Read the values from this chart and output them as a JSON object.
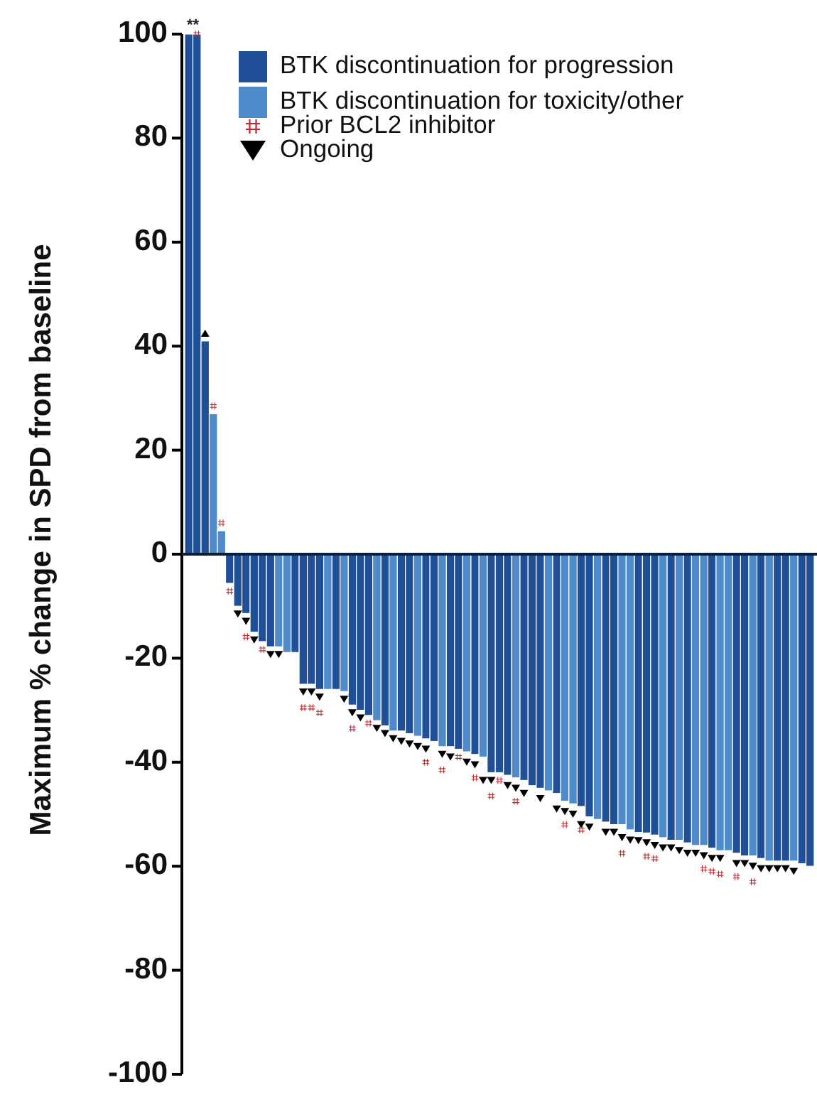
{
  "chart_data": {
    "type": "bar",
    "ylabel": "Maximum % change in SPD from baseline",
    "categories": [
      null,
      null,
      null,
      null,
      null,
      null,
      null,
      null,
      null,
      null,
      null,
      null,
      null,
      null,
      null,
      null,
      null,
      null,
      null,
      null,
      null,
      null,
      null,
      null,
      null,
      null,
      null,
      null,
      null,
      null,
      null,
      null,
      null,
      null,
      null,
      null,
      null,
      null,
      null,
      null,
      null,
      null,
      null,
      null,
      null,
      null,
      null,
      null,
      null,
      null,
      null,
      null,
      null,
      null,
      null,
      null,
      null,
      null,
      null,
      null,
      null,
      null,
      null,
      null,
      null,
      null,
      null,
      null,
      null,
      null,
      null,
      null,
      null,
      null,
      null,
      null,
      null
    ],
    "ylim": [
      -100,
      100
    ],
    "yticks": [
      -100,
      -80,
      -60,
      -40,
      -20,
      0,
      20,
      40,
      60,
      80,
      100
    ],
    "grid": false,
    "legend": "top",
    "annotations": [
      "**"
    ],
    "series": [
      {
        "name": "BTK discontinuation for progression",
        "color": "#1f4f97",
        "values": [
          100,
          100,
          41,
          null,
          null,
          -5.6,
          -10,
          -11.4,
          -15,
          -16.8,
          -17.8,
          null,
          null,
          -18.9,
          -25,
          -25,
          -26,
          null,
          -26,
          null,
          -29,
          -30,
          -31,
          null,
          -33,
          null,
          -34,
          -34.5,
          null,
          -35.5,
          -36,
          null,
          -37,
          -37.5,
          null,
          -38.5,
          null,
          -42,
          -42,
          -42.5,
          null,
          -43.5,
          -44.5,
          -45,
          null,
          -46,
          null,
          null,
          -48.5,
          -50.5,
          null,
          -51.5,
          -52,
          null,
          null,
          -53.5,
          -53.6,
          -54,
          null,
          -55,
          null,
          -55.5,
          null,
          null,
          -56.5,
          null,
          null,
          -57.5,
          -58,
          null,
          -58.5,
          null,
          -59,
          -59,
          null,
          -59.5,
          -60
        ]
      },
      {
        "name": "BTK discontinuation for toxicity/other",
        "color": "#4f8bcb",
        "values": [
          null,
          null,
          null,
          27,
          4.5,
          null,
          null,
          null,
          null,
          null,
          null,
          -17.8,
          -18.9,
          null,
          null,
          null,
          null,
          -26,
          null,
          -26.4,
          null,
          null,
          null,
          -32,
          null,
          -34,
          null,
          null,
          -35,
          null,
          null,
          -37,
          null,
          null,
          -38,
          null,
          -39,
          null,
          null,
          null,
          -43,
          null,
          null,
          null,
          -45.5,
          null,
          -47.5,
          -48,
          null,
          null,
          -51,
          null,
          null,
          -52,
          -53,
          null,
          null,
          null,
          -54.5,
          null,
          -55,
          null,
          -56,
          -56,
          null,
          -57,
          -57,
          null,
          null,
          -58,
          null,
          -59,
          null,
          null,
          -59,
          null,
          null
        ]
      },
      {
        "name": "Prior BCL2 inhibitor",
        "type": "scatter",
        "marker": "cross",
        "color": "#c0262d",
        "values": [
          null,
          100,
          null,
          28.5,
          6,
          -7.1,
          null,
          -15.9,
          null,
          -18.3,
          null,
          null,
          null,
          null,
          -29.5,
          -29.5,
          -30.5,
          null,
          null,
          null,
          -33.5,
          null,
          -32.5,
          null,
          null,
          null,
          null,
          null,
          null,
          -40,
          null,
          -41.5,
          null,
          -39,
          null,
          -43,
          null,
          -46.5,
          -43.5,
          null,
          -47.5,
          null,
          null,
          null,
          null,
          null,
          -52,
          null,
          -53,
          null,
          null,
          null,
          null,
          -57.5,
          null,
          null,
          -58.1,
          -58.5,
          null,
          null,
          null,
          null,
          null,
          -60.5,
          -61,
          -61.5,
          null,
          -62,
          null,
          -63,
          null,
          null,
          null,
          null,
          null,
          null,
          null
        ]
      },
      {
        "name": "Ongoing",
        "type": "scatter",
        "marker": "triangle",
        "color": "#000000",
        "values": [
          null,
          null,
          42.5,
          null,
          null,
          null,
          -11.5,
          -12.9,
          -16.5,
          null,
          -19.3,
          -19.3,
          null,
          null,
          -26.5,
          -26.5,
          -27.5,
          null,
          null,
          -27.9,
          -30.5,
          -31.5,
          null,
          -33.5,
          -34.5,
          -35.5,
          -36,
          -36.5,
          -37,
          -37.5,
          null,
          -38.5,
          -39,
          null,
          -40,
          -40.5,
          -43.5,
          -43.5,
          null,
          -44.5,
          -45,
          -46,
          null,
          -47,
          null,
          -49,
          -49.5,
          -50,
          -52,
          -52.5,
          null,
          -53.5,
          -53.5,
          -54.5,
          -55,
          -55.1,
          -55.5,
          -56,
          -56.5,
          -56.5,
          -57,
          -57.5,
          -57.5,
          -58,
          -58.5,
          -58.5,
          null,
          -59.5,
          -59.5,
          -60,
          -60.5,
          -60.5,
          -60.5,
          -60.5,
          -61,
          null,
          null
        ]
      }
    ]
  }
}
